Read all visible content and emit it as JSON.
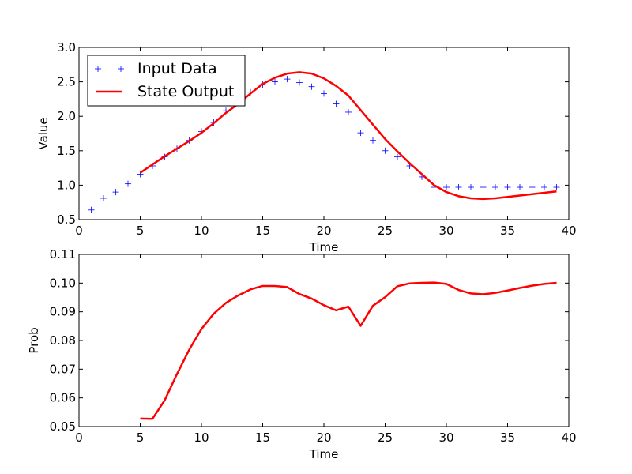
{
  "chart_data": [
    {
      "type": "line",
      "xlabel": "Time",
      "ylabel": "Value",
      "xlim": [
        0,
        40
      ],
      "ylim": [
        0.5,
        3.0
      ],
      "xticks": [
        "0",
        "5",
        "10",
        "15",
        "20",
        "25",
        "30",
        "35",
        "40"
      ],
      "yticks": [
        "0.5",
        "1.0",
        "1.5",
        "2.0",
        "2.5",
        "3.0"
      ],
      "grid": false,
      "legend_position": "top-left",
      "series": [
        {
          "name": "Input Data",
          "marker": "+",
          "color": "#0000ff",
          "x": [
            1,
            2,
            3,
            4,
            5,
            6,
            7,
            8,
            9,
            10,
            11,
            12,
            13,
            14,
            15,
            16,
            17,
            18,
            19,
            20,
            21,
            22,
            23,
            24,
            25,
            26,
            27,
            28,
            29,
            30,
            31,
            32,
            33,
            34,
            35,
            36,
            37,
            38,
            39
          ],
          "y": [
            0.64,
            0.81,
            0.9,
            1.02,
            1.16,
            1.28,
            1.41,
            1.53,
            1.65,
            1.78,
            1.91,
            2.08,
            2.23,
            2.35,
            2.46,
            2.5,
            2.54,
            2.49,
            2.43,
            2.33,
            2.18,
            2.06,
            1.76,
            1.65,
            1.5,
            1.41,
            1.28,
            1.12,
            0.97,
            0.97,
            0.97,
            0.97,
            0.97,
            0.97,
            0.97,
            0.97,
            0.97,
            0.97,
            0.97
          ]
        },
        {
          "name": "State Output",
          "marker": "line",
          "color": "#ff0000",
          "x": [
            5,
            6,
            7,
            8,
            9,
            10,
            11,
            12,
            13,
            14,
            15,
            16,
            17,
            18,
            19,
            20,
            21,
            22,
            23,
            24,
            25,
            26,
            27,
            28,
            29,
            30,
            31,
            32,
            33,
            34,
            35,
            36,
            37,
            38,
            39
          ],
          "y": [
            1.18,
            1.3,
            1.42,
            1.53,
            1.64,
            1.76,
            1.9,
            2.05,
            2.18,
            2.33,
            2.47,
            2.56,
            2.62,
            2.64,
            2.62,
            2.55,
            2.44,
            2.3,
            2.09,
            1.88,
            1.67,
            1.49,
            1.32,
            1.16,
            1.0,
            0.9,
            0.84,
            0.81,
            0.8,
            0.81,
            0.83,
            0.85,
            0.87,
            0.89,
            0.91
          ]
        }
      ]
    },
    {
      "type": "line",
      "xlabel": "Time",
      "ylabel": "Prob",
      "xlim": [
        0,
        40
      ],
      "ylim": [
        0.05,
        0.11
      ],
      "xticks": [
        "0",
        "5",
        "10",
        "15",
        "20",
        "25",
        "30",
        "35",
        "40"
      ],
      "yticks": [
        "0.05",
        "0.06",
        "0.07",
        "0.08",
        "0.09",
        "0.10",
        "0.11"
      ],
      "grid": false,
      "series": [
        {
          "color": "#ff0000",
          "x": [
            5,
            6,
            7,
            8,
            9,
            10,
            11,
            12,
            13,
            14,
            15,
            16,
            17,
            18,
            19,
            20,
            21,
            22,
            23,
            24,
            25,
            26,
            27,
            28,
            29,
            30,
            31,
            32,
            33,
            34,
            35,
            36,
            37,
            38,
            39
          ],
          "y": [
            0.0528,
            0.0527,
            0.0592,
            0.0683,
            0.0768,
            0.084,
            0.0893,
            0.0931,
            0.0957,
            0.0978,
            0.099,
            0.099,
            0.0986,
            0.0962,
            0.0946,
            0.0923,
            0.0905,
            0.0918,
            0.0851,
            0.0921,
            0.0951,
            0.0989,
            0.0999,
            0.1001,
            0.1002,
            0.0997,
            0.0976,
            0.0964,
            0.0961,
            0.0966,
            0.0974,
            0.0983,
            0.0991,
            0.0997,
            0.1001
          ]
        }
      ]
    }
  ]
}
